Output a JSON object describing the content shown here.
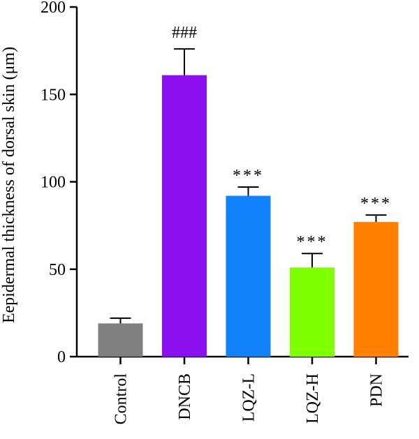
{
  "chart_data": {
    "type": "bar",
    "title": "",
    "xlabel": "",
    "ylabel": "Eepidermal thickness of dorsal skin (μm)",
    "ylim": [
      0,
      200
    ],
    "yticks": [
      0,
      50,
      100,
      150,
      200
    ],
    "grid": false,
    "legend": "none",
    "categories": [
      "Control",
      "DNCB",
      "LQZ-L",
      "LQZ-H",
      "PDN"
    ],
    "values": [
      19,
      161,
      92,
      51,
      77
    ],
    "errors": [
      3,
      15,
      5,
      8,
      4
    ],
    "annotations": [
      "",
      "###",
      "***",
      "***",
      "***"
    ],
    "colors": [
      "#808080",
      "#8b10ef",
      "#1282fb",
      "#80ff00",
      "#ff8000"
    ]
  }
}
